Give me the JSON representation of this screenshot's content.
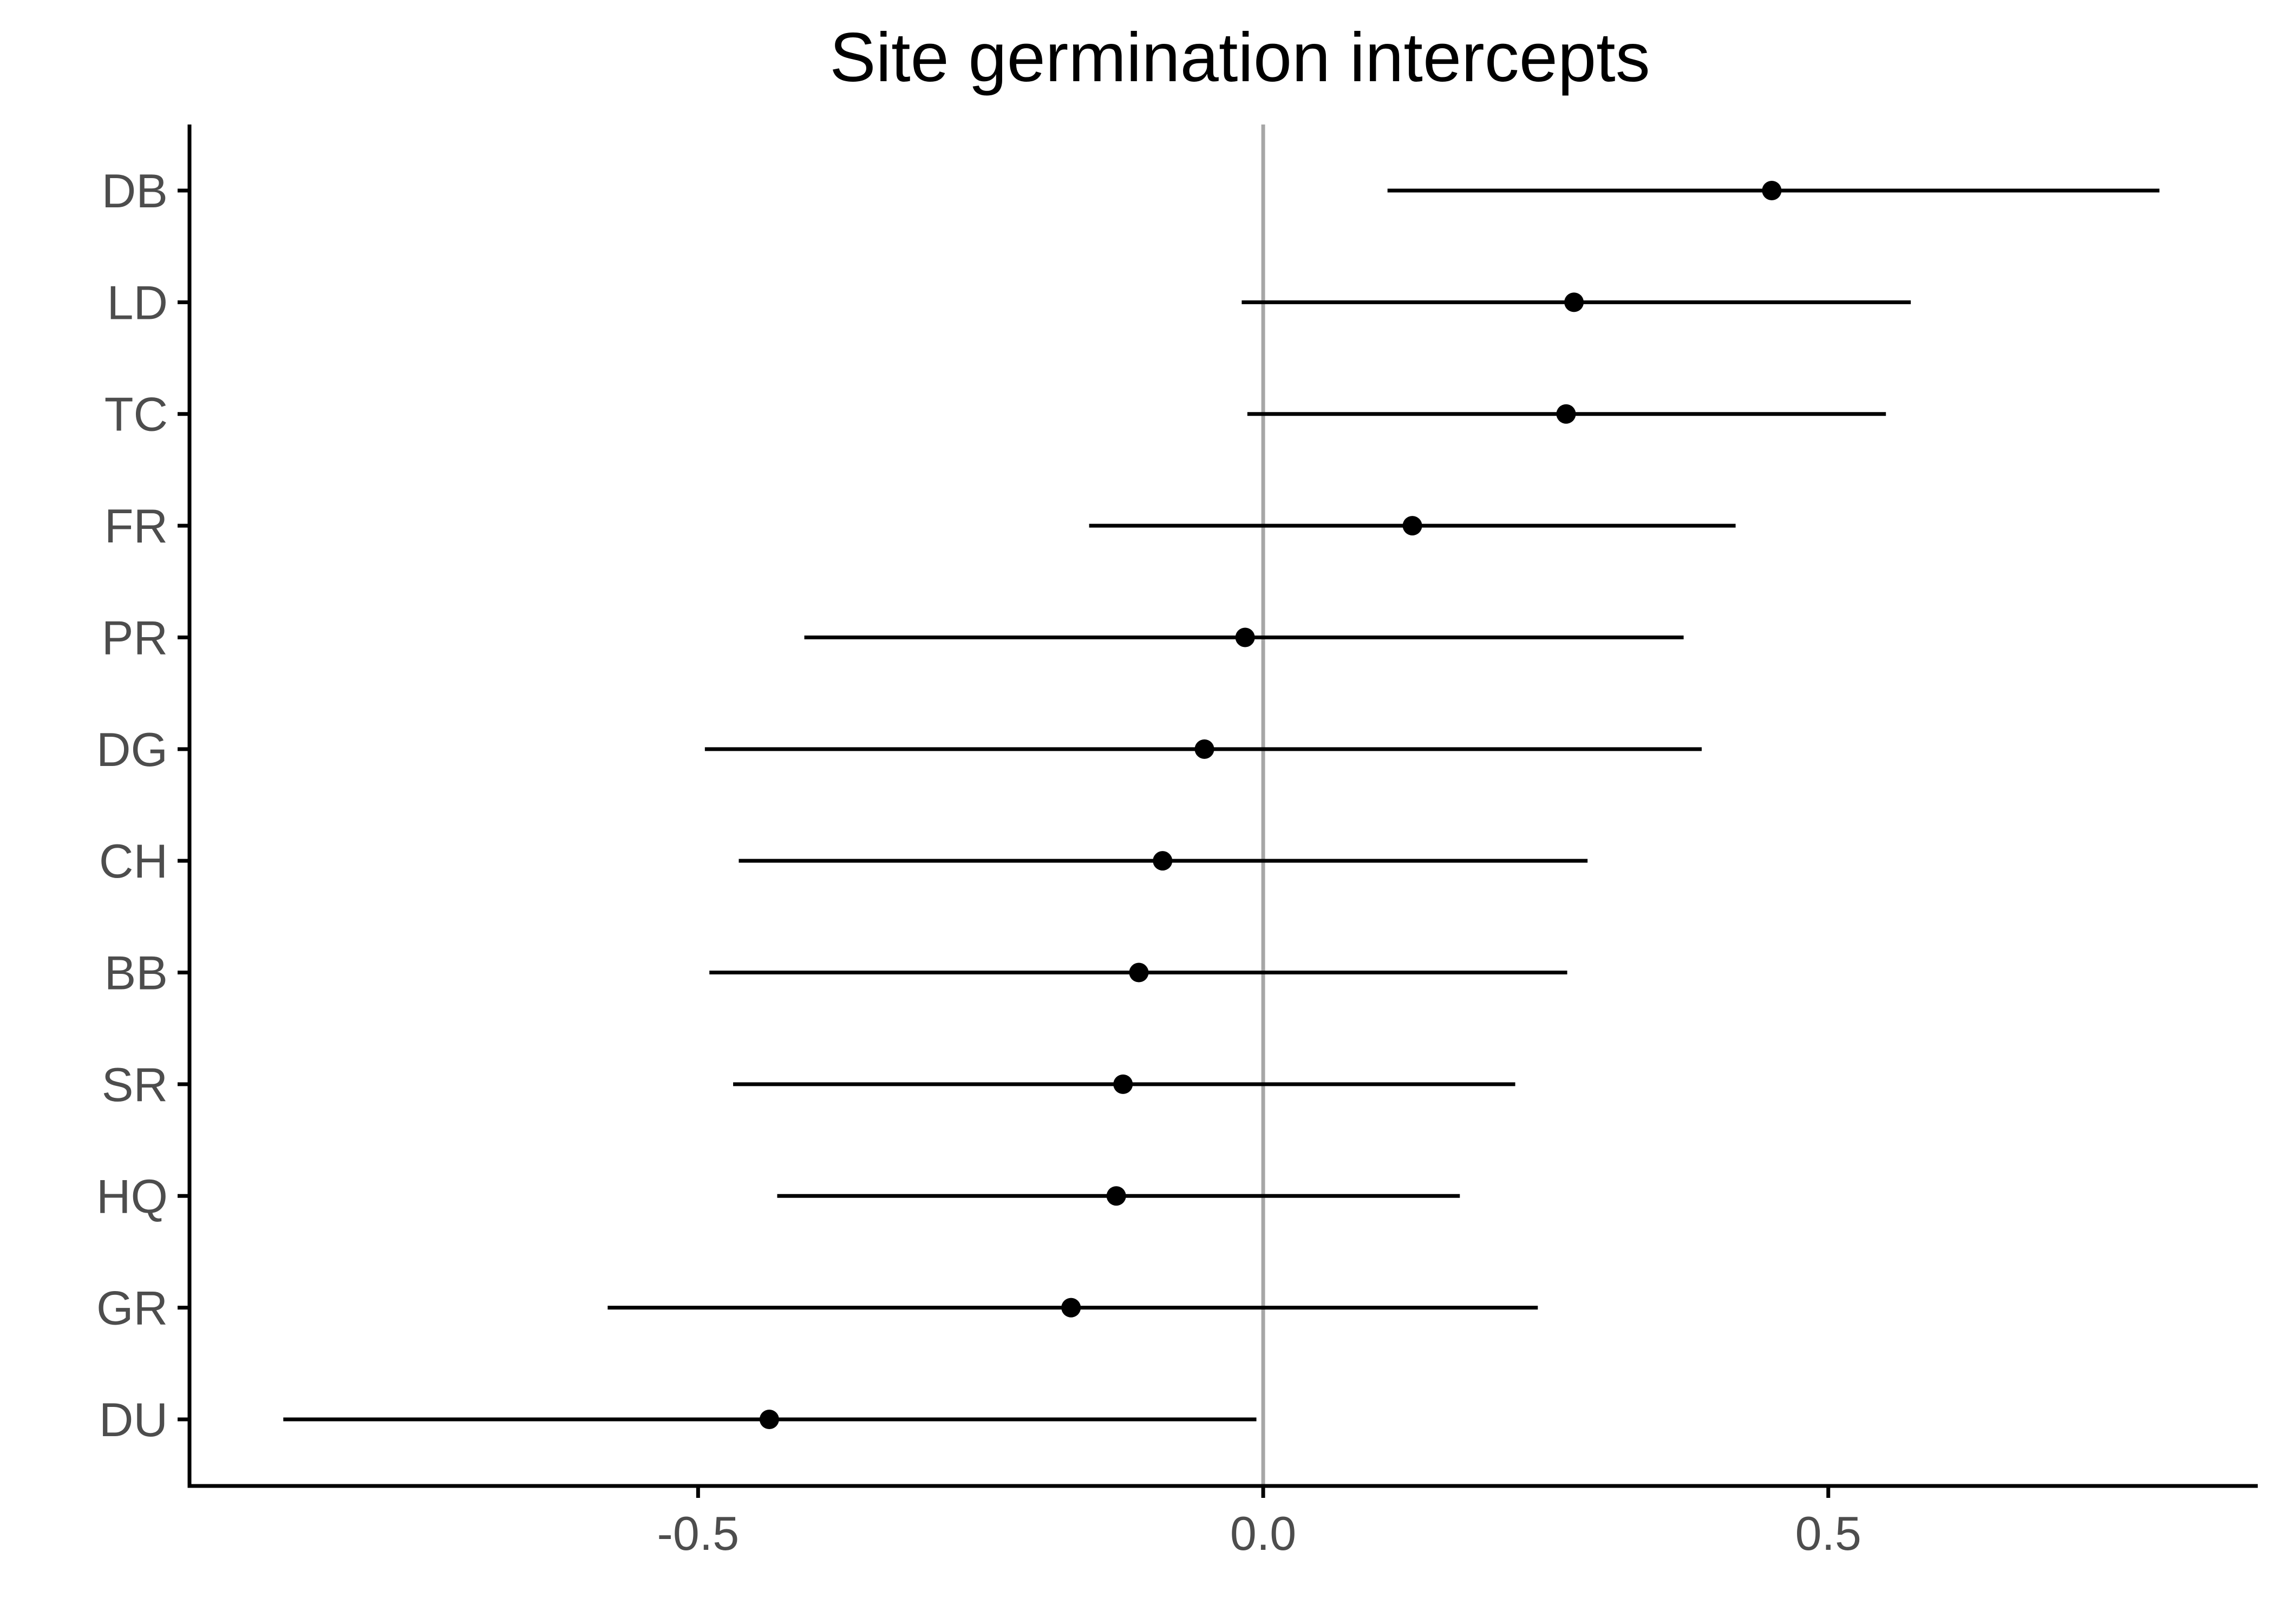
{
  "chart_data": {
    "type": "interval",
    "title": "Site germination intercepts",
    "xlabel": "",
    "ylabel": "",
    "xlim": [
      -0.95,
      0.88
    ],
    "xticks": [
      -0.5,
      0.0,
      0.5
    ],
    "xtick_labels": [
      "-0.5",
      "0.0",
      "0.5"
    ],
    "reference_line": 0.0,
    "grid": false,
    "legend": "none",
    "categories": [
      "DB",
      "LD",
      "TC",
      "FR",
      "PR",
      "DG",
      "CH",
      "BB",
      "SR",
      "HQ",
      "GR",
      "DU"
    ],
    "estimates": [
      0.45,
      0.275,
      0.268,
      0.132,
      -0.016,
      -0.052,
      -0.089,
      -0.11,
      -0.124,
      -0.13,
      -0.17,
      -0.437
    ],
    "lower": [
      0.11,
      -0.019,
      -0.014,
      -0.154,
      -0.406,
      -0.494,
      -0.464,
      -0.49,
      -0.469,
      -0.43,
      -0.58,
      -0.867
    ],
    "upper": [
      0.793,
      0.573,
      0.551,
      0.418,
      0.372,
      0.388,
      0.287,
      0.269,
      0.223,
      0.174,
      0.243,
      -0.006
    ]
  },
  "colors": {
    "point": "#000000",
    "interval": "#000000",
    "reference_line": "#a6a6a6",
    "axis": "#000000",
    "tick_text": "#4d4d4d",
    "title": "#000000"
  }
}
